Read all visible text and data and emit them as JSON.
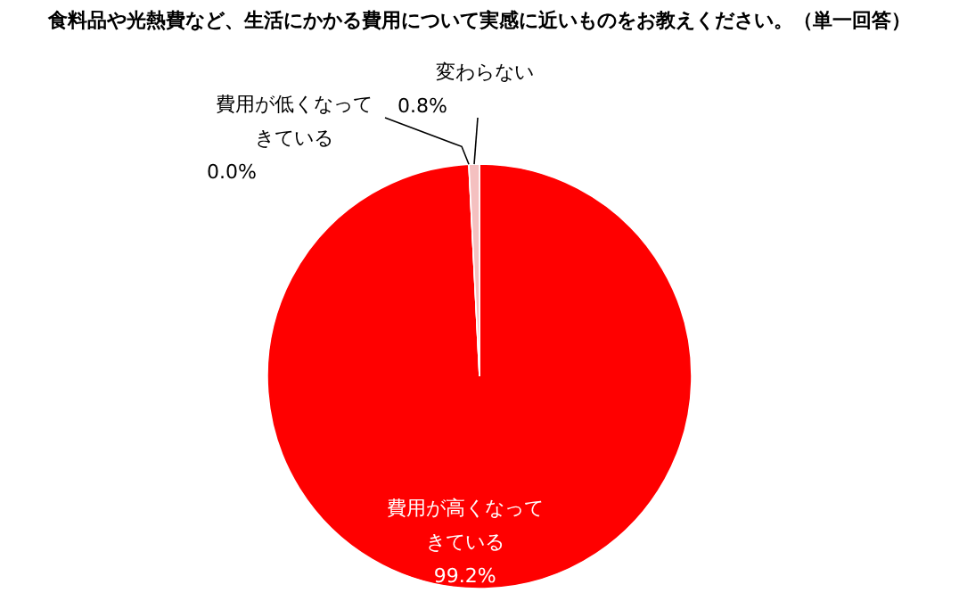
{
  "chart_data": {
    "type": "pie",
    "title": "食料品や光熱費など、生活にかかる費用について実感に近いものをお教えください。（単一回答）",
    "categories": [
      "費用が高くなってきている",
      "費用が低くなってきている",
      "変わらない"
    ],
    "values": [
      99.2,
      0.0,
      0.8
    ],
    "colors": [
      "#ff0000",
      "#ff8080",
      "#f4c0c0"
    ],
    "value_labels": [
      "99.2%",
      "0.0%",
      "0.8%"
    ]
  }
}
